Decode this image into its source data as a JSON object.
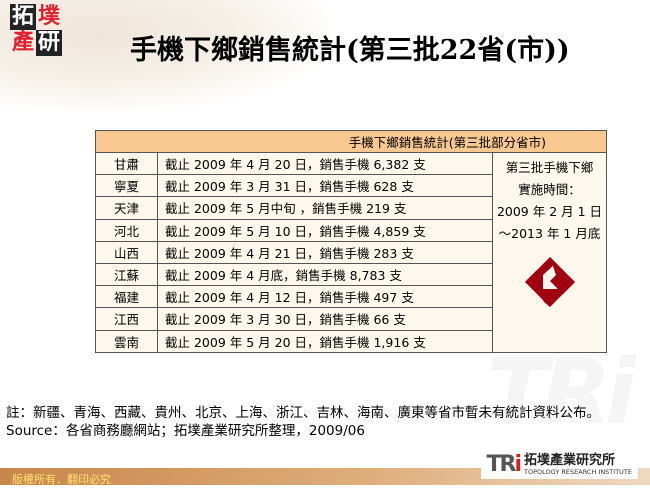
{
  "logo": {
    "chars": [
      "拓",
      "墣",
      "產",
      "研"
    ]
  },
  "title": "手機下鄉銷售統計(第三批22省(市))",
  "table": {
    "header": "手機下鄉銷售統計(第三批部分省市)",
    "rows": [
      {
        "province": "甘肅",
        "detail": "截止 2009 年 4 月 20 日，銷售手機 6,382 支"
      },
      {
        "province": "寧夏",
        "detail": "截止 2009 年 3 月 31 日，銷售手機 628 支"
      },
      {
        "province": "天津",
        "detail": "截止 2009 年 5 月中旬 ，銷售手機 219 支"
      },
      {
        "province": "河北",
        "detail": "截止 2009 年 5 月 10 日，銷售手機 4,859 支"
      },
      {
        "province": "山西",
        "detail": "截止 2009 年 4 月 21 日，銷售手機 283 支"
      },
      {
        "province": "江蘇",
        "detail": "截止 2009 年 4 月底，銷售手機 8,783 支"
      },
      {
        "province": "福建",
        "detail": "截止 2009 年 4 月 12 日，銷售手機 497 支"
      },
      {
        "province": "江西",
        "detail": "截止 2009 年 3 月 30 日，銷售手機 66 支"
      },
      {
        "province": "雲南",
        "detail": "截止 2009 年 5 月 20 日，銷售手機 1,916 支"
      }
    ],
    "side": [
      "第三批手機下鄉",
      "實施時間：",
      "2009 年 2 月 1 日",
      "～2013 年 1 月底"
    ]
  },
  "note": "註：新疆、青海、西藏、貴州、北京、上海、浙江、吉林、海南、廣東等省市暫未有統計資料公布。",
  "source": "Source：各省商務廳網站；拓墣產業研究所整理，2009/06",
  "footer": {
    "copyright": "版權所有．翻印必究"
  },
  "tri_logo": {
    "mark_prefix": "TR",
    "mark_suffix": "i",
    "cn": "拓墣產業研究所",
    "en": "TOPOLOGY RESEARCH INSTITUTE"
  },
  "colors": {
    "header": "#f8c890",
    "table_bg": "#fdf8ee",
    "emblem": "#a00010",
    "footer_text": "#ffe36b"
  }
}
